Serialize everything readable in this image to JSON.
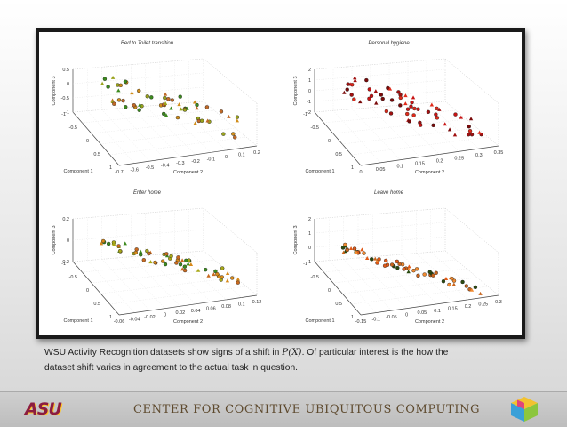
{
  "caption": {
    "line1_pre": "WSU Activity Recognition datasets  show signs of a shift in ",
    "line1_math": "P(X)",
    "line1_post": ". Of particular interest is the how the",
    "line2": "dataset shift varies in agreement to the actual task in question."
  },
  "footer": {
    "title": "CENTER FOR COGNITIVE UBIQUITOUS COMPUTING",
    "logo_text": "ASU",
    "logo_icon": "cube-icon"
  },
  "chart_data": [
    {
      "type": "scatter",
      "title": "Bed to Toilet transition",
      "xlabel": "Component 1",
      "ylabel": "Component 2",
      "zlabel": "Component 3",
      "z_ticks": [
        "0.5",
        "0",
        "-0.5",
        "-1"
      ],
      "x_ticks": [
        "-1",
        "-0.5",
        "0",
        "0.5",
        "1"
      ],
      "y_ticks": [
        "-0.7",
        "-0.6",
        "-0.5",
        "-0.4",
        "-0.3",
        "-0.2",
        "-0.1",
        "0",
        "0.1",
        "0.2"
      ],
      "colors": [
        "#3c8a1e",
        "#9aa21c",
        "#d08d1a",
        "#c06a28"
      ]
    },
    {
      "type": "scatter",
      "title": "Personal hygiene",
      "xlabel": "Component 1",
      "ylabel": "Component 2",
      "zlabel": "Component 3",
      "z_ticks": [
        "2",
        "1",
        "0",
        "-1",
        "-2"
      ],
      "x_ticks": [
        "-1",
        "-0.5",
        "0",
        "0.5",
        "1"
      ],
      "y_ticks": [
        "0",
        "0.05",
        "0.1",
        "0.15",
        "0.2",
        "0.25",
        "0.3",
        "0.35"
      ],
      "colors": [
        "#c81414",
        "#7a0a0a",
        "#e02a1a",
        "#a01010"
      ]
    },
    {
      "type": "scatter",
      "title": "Enter home",
      "xlabel": "Component 1",
      "ylabel": "Component 2",
      "zlabel": "Component 3",
      "z_ticks": [
        "0.2",
        "0",
        "-0.2"
      ],
      "x_ticks": [
        "-1",
        "-0.5",
        "0",
        "0.5",
        "1"
      ],
      "y_ticks": [
        "-0.06",
        "-0.04",
        "-0.02",
        "0",
        "0.02",
        "0.04",
        "0.06",
        "0.08",
        "0.1",
        "0.12"
      ],
      "colors": [
        "#3c8a1e",
        "#a8a818",
        "#d88a1a",
        "#c86a20"
      ]
    },
    {
      "type": "scatter",
      "title": "Leave home",
      "xlabel": "Component 1",
      "ylabel": "Component 2",
      "zlabel": "Component 3",
      "z_ticks": [
        "2",
        "1",
        "0",
        "-1"
      ],
      "x_ticks": [
        "-1",
        "-0.5",
        "0",
        "0.5",
        "1"
      ],
      "y_ticks": [
        "-0.15",
        "-0.1",
        "-0.05",
        "0",
        "0.05",
        "0.1",
        "0.15",
        "0.2",
        "0.25",
        "0.3"
      ],
      "colors": [
        "#e05a18",
        "#f08a30",
        "#c8641c",
        "#2a4a10"
      ]
    }
  ]
}
